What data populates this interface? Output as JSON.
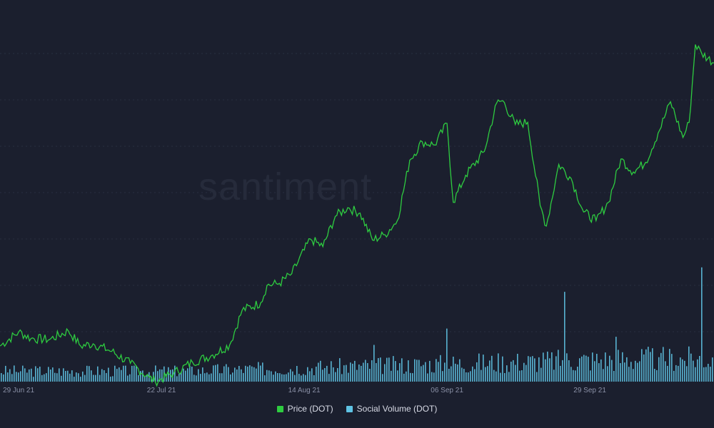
{
  "watermark": "santiment",
  "legend": {
    "price_label": "Price (DOT)",
    "social_label": "Social Volume (DOT)"
  },
  "colors": {
    "background": "#1b1f2e",
    "price": "#2ecc40",
    "social": "#5fc3e4",
    "grid": "#2a2f40"
  },
  "chart_data": {
    "type": "line",
    "x_start": "2021-06-26",
    "x_end": "2021-10-19",
    "x_ticks": [
      "29 Jun 21",
      "22 Jul 21",
      "14 Aug 21",
      "06 Sep 21",
      "29 Sep 21"
    ],
    "grid": true,
    "legend_position": "bottom-center",
    "series": [
      {
        "name": "Price (DOT)",
        "kind": "line",
        "axis": "left",
        "ylim": [
          12,
          46
        ],
        "points": [
          [
            "2021-06-26",
            15.3
          ],
          [
            "2021-06-29",
            16.6
          ],
          [
            "2021-07-01",
            16.0
          ],
          [
            "2021-07-04",
            15.9
          ],
          [
            "2021-07-07",
            16.7
          ],
          [
            "2021-07-09",
            15.3
          ],
          [
            "2021-07-11",
            15.5
          ],
          [
            "2021-07-14",
            14.8
          ],
          [
            "2021-07-17",
            13.7
          ],
          [
            "2021-07-20",
            12.4
          ],
          [
            "2021-07-21",
            12.0
          ],
          [
            "2021-07-24",
            12.8
          ],
          [
            "2021-07-27",
            13.8
          ],
          [
            "2021-07-30",
            14.4
          ],
          [
            "2021-08-02",
            15.4
          ],
          [
            "2021-08-04",
            18.6
          ],
          [
            "2021-08-07",
            19.3
          ],
          [
            "2021-08-08",
            20.9
          ],
          [
            "2021-08-10",
            21.1
          ],
          [
            "2021-08-12",
            22.0
          ],
          [
            "2021-08-15",
            25.2
          ],
          [
            "2021-08-17",
            24.5
          ],
          [
            "2021-08-19",
            27.3
          ],
          [
            "2021-08-21",
            28.1
          ],
          [
            "2021-08-23",
            27.6
          ],
          [
            "2021-08-25",
            25.1
          ],
          [
            "2021-08-27",
            25.6
          ],
          [
            "2021-08-29",
            26.9
          ],
          [
            "2021-08-31",
            32.5
          ],
          [
            "2021-09-02",
            34.2
          ],
          [
            "2021-09-04",
            33.9
          ],
          [
            "2021-09-06",
            35.9
          ],
          [
            "2021-09-07",
            28.6
          ],
          [
            "2021-09-09",
            31.1
          ],
          [
            "2021-09-12",
            33.3
          ],
          [
            "2021-09-14",
            37.8
          ],
          [
            "2021-09-15",
            38.0
          ],
          [
            "2021-09-17",
            35.8
          ],
          [
            "2021-09-19",
            36.0
          ],
          [
            "2021-09-21",
            28.3
          ],
          [
            "2021-09-22",
            26.4
          ],
          [
            "2021-09-24",
            32.1
          ],
          [
            "2021-09-26",
            30.8
          ],
          [
            "2021-09-28",
            27.7
          ],
          [
            "2021-09-30",
            26.9
          ],
          [
            "2021-10-02",
            28.6
          ],
          [
            "2021-10-04",
            32.6
          ],
          [
            "2021-10-06",
            31.4
          ],
          [
            "2021-10-08",
            32.3
          ],
          [
            "2021-10-10",
            35.0
          ],
          [
            "2021-10-12",
            37.9
          ],
          [
            "2021-10-14",
            34.6
          ],
          [
            "2021-10-15",
            36.0
          ],
          [
            "2021-10-16",
            43.2
          ],
          [
            "2021-10-17",
            42.4
          ],
          [
            "2021-10-19",
            41.5
          ]
        ]
      },
      {
        "name": "Social Volume (DOT)",
        "kind": "bar",
        "axis": "right",
        "ylim": [
          0,
          900
        ],
        "spikes": [
          [
            "2021-08-25",
            90
          ],
          [
            "2021-09-06",
            130
          ],
          [
            "2021-09-25",
            220
          ],
          [
            "2021-10-03",
            110
          ],
          [
            "2021-10-10",
            60
          ],
          [
            "2021-10-17",
            280
          ],
          [
            "2021-10-19",
            330
          ]
        ],
        "typical_low": 20,
        "typical_high": 70
      }
    ]
  }
}
